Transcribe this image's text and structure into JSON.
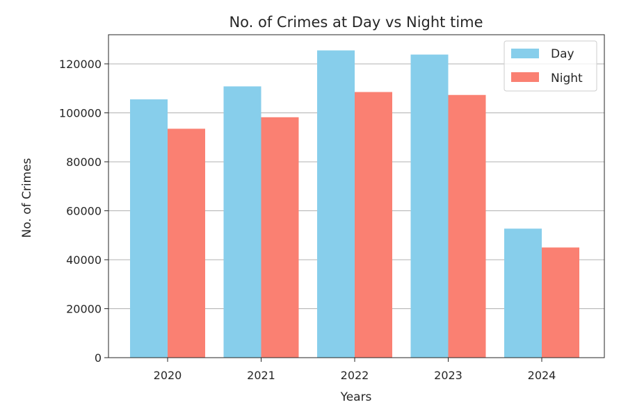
{
  "chart_data": {
    "type": "bar",
    "title": "No. of Crimes at Day vs Night time",
    "xlabel": "Years",
    "ylabel": "No. of Crimes",
    "categories": [
      "2020",
      "2021",
      "2022",
      "2023",
      "2024"
    ],
    "series": [
      {
        "name": "Day",
        "color": "#87ceeb",
        "values": [
          105500,
          110800,
          125500,
          123800,
          52700
        ]
      },
      {
        "name": "Night",
        "color": "#fa8072",
        "values": [
          93500,
          98200,
          108500,
          107300,
          45000
        ]
      }
    ],
    "ylim": [
      0,
      131900
    ],
    "yticks": [
      0,
      20000,
      40000,
      60000,
      80000,
      100000,
      120000
    ],
    "ytick_labels": [
      "0",
      "20000",
      "40000",
      "60000",
      "80000",
      "100000",
      "120000"
    ],
    "grid": "horizontal",
    "legend": "top-right"
  }
}
